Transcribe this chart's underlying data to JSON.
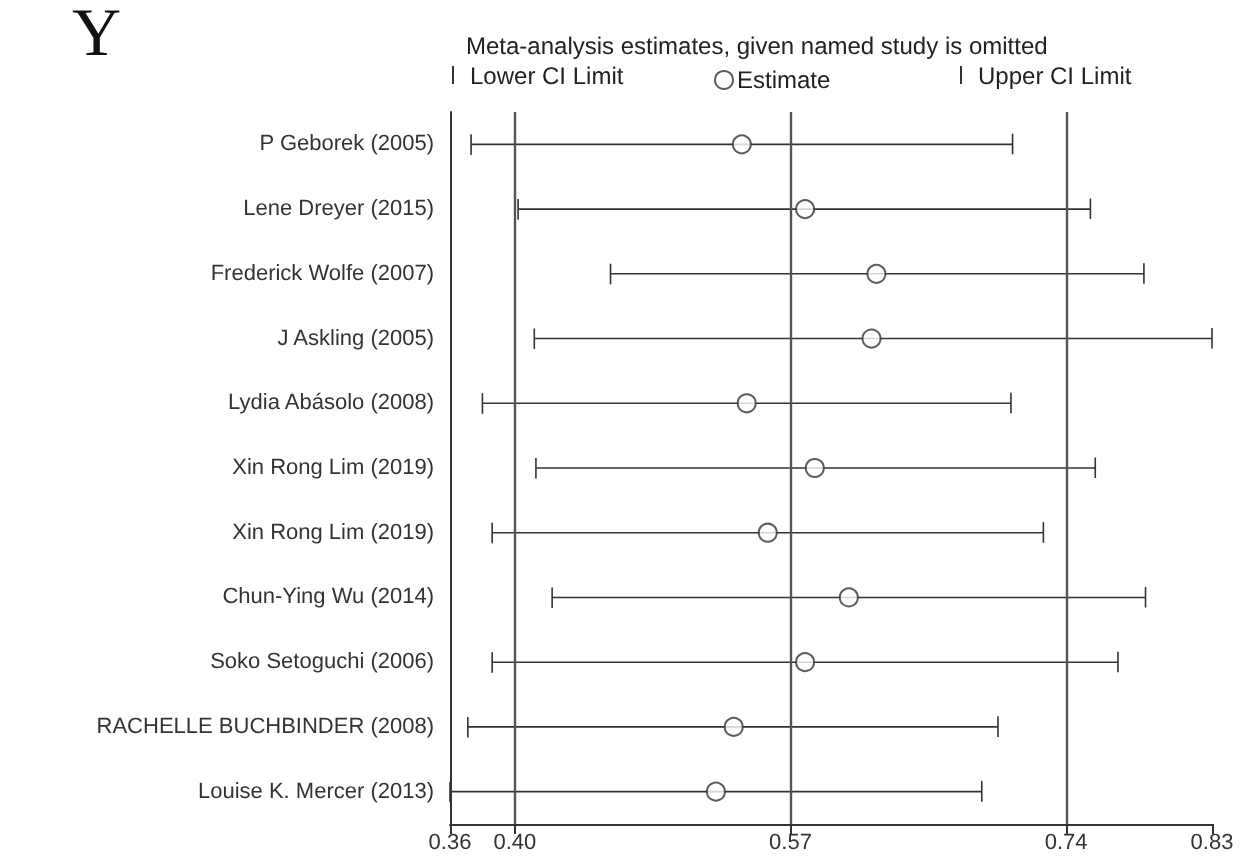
{
  "chart_data": {
    "type": "scatter",
    "orientation": "horizontal",
    "title": "Meta-analysis estimates, given named study is omitted",
    "annotations": [
      "Y",
      "Lower CI Limit",
      "Upper CI Limit"
    ],
    "categories": [
      "P Geborek (2005)",
      "Lene Dreyer (2015)",
      "Frederick Wolfe (2007)",
      "J Askling (2005)",
      "Lydia Abásolo (2008)",
      "Xin Rong Lim (2019)",
      "Xin Rong Lim (2019)",
      "Chun-Ying Wu (2014)",
      "Soko Setoguchi (2006)",
      "RACHELLE BUCHBINDER (2008)",
      "Louise K. Mercer (2013)"
    ],
    "series": [
      {
        "name": "Estimate",
        "color": "#333333",
        "marker": "circle",
        "values": [
          0.54,
          0.579,
          0.623,
          0.62,
          0.543,
          0.585,
          0.556,
          0.606,
          0.579,
          0.535,
          0.524
        ],
        "errors": [
          [
            0.373,
            0.707
          ],
          [
            0.402,
            0.755
          ],
          [
            0.459,
            0.788
          ],
          [
            0.412,
            0.83
          ],
          [
            0.38,
            0.706
          ],
          [
            0.413,
            0.758
          ],
          [
            0.386,
            0.726
          ],
          [
            0.423,
            0.789
          ],
          [
            0.386,
            0.772
          ],
          [
            0.371,
            0.698
          ],
          [
            0.36,
            0.688
          ]
        ]
      }
    ],
    "xlim": [
      0.36,
      0.83
    ],
    "xticks": [
      0.36,
      {
        "value": 0.4,
        "label": "0.40"
      },
      0.57,
      0.74,
      0.83
    ],
    "ref_lines": [
      {
        "axis": "x",
        "value": 0.4,
        "color": "#555555"
      },
      {
        "axis": "x",
        "value": 0.57,
        "color": "#555555"
      },
      {
        "axis": "x",
        "value": 0.74,
        "color": "#555555"
      }
    ],
    "grid": false,
    "legend": "top"
  }
}
